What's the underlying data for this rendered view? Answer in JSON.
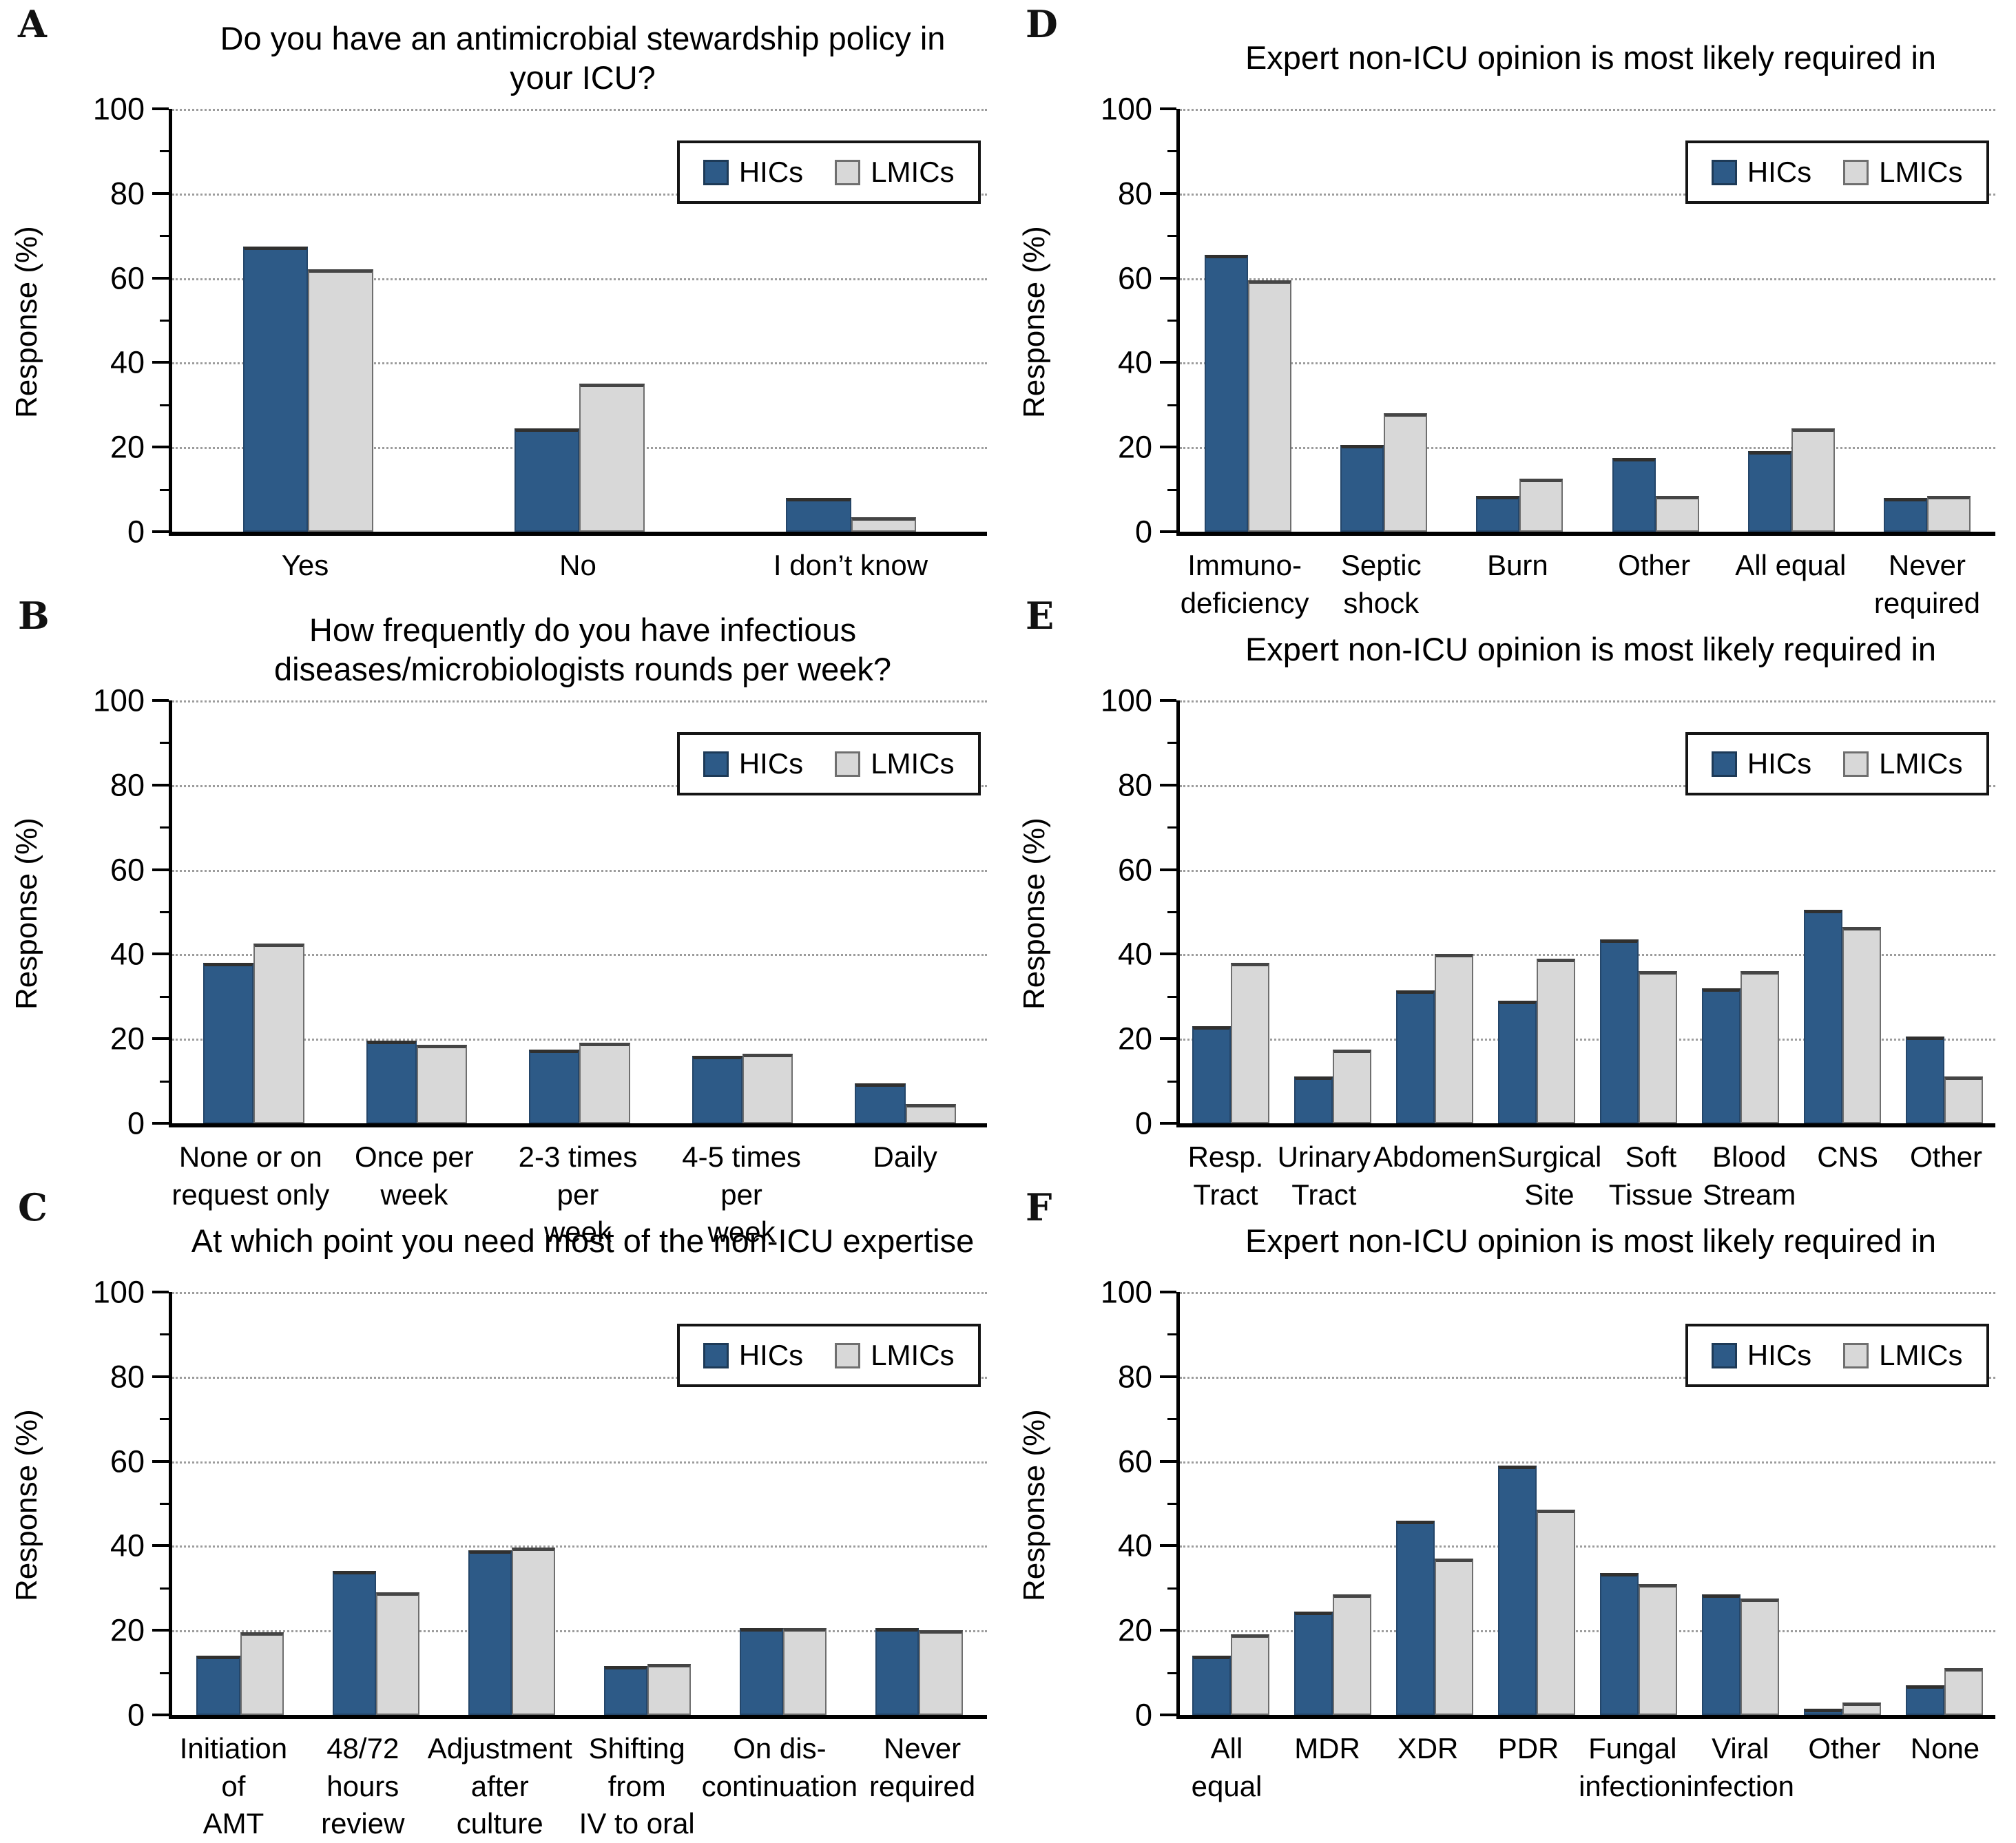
{
  "ylabel": "Response (%)",
  "yticks": [
    0,
    20,
    40,
    60,
    80,
    100
  ],
  "legend": {
    "items": [
      {
        "label": "HICs",
        "color": "#2d5a87"
      },
      {
        "label": "LMICs",
        "color": "#d8d8d8"
      }
    ]
  },
  "chart_data": [
    {
      "panel": "A",
      "type": "bar",
      "title": "Do you have an antimicrobial stewardship policy in your ICU?",
      "categories": [
        [
          "Yes"
        ],
        [
          "No"
        ],
        [
          "I don’t know"
        ]
      ],
      "series": [
        {
          "name": "HICs",
          "values": [
            67.5,
            24.5,
            8
          ]
        },
        {
          "name": "LMICs",
          "values": [
            62,
            35,
            3.5
          ]
        }
      ],
      "xlabel": "",
      "ylabel": "Response (%)",
      "ylim": [
        0,
        100
      ],
      "grid": true,
      "legend_position": "top-right"
    },
    {
      "panel": "D",
      "type": "bar",
      "title": "Expert non-ICU opinion is most likely required in",
      "categories": [
        [
          "Immuno-",
          "deficiency"
        ],
        [
          "Septic shock"
        ],
        [
          "Burn"
        ],
        [
          "Other"
        ],
        [
          "All equal"
        ],
        [
          "Never",
          "required"
        ]
      ],
      "series": [
        {
          "name": "HICs",
          "values": [
            65.5,
            20.5,
            8.5,
            17.5,
            19,
            8
          ]
        },
        {
          "name": "LMICs",
          "values": [
            59.5,
            28,
            12.5,
            8.5,
            24.5,
            8.5
          ]
        }
      ],
      "xlabel": "",
      "ylabel": "Response (%)",
      "ylim": [
        0,
        100
      ],
      "grid": true,
      "legend_position": "top-right"
    },
    {
      "panel": "B",
      "type": "bar",
      "title": "How frequently do you have infectious diseases/microbiologists rounds per week?",
      "categories": [
        [
          "None or on",
          "request only"
        ],
        [
          "Once per",
          "week"
        ],
        [
          "2-3 times per",
          "week"
        ],
        [
          "4-5 times per",
          "week"
        ],
        [
          "Daily"
        ]
      ],
      "series": [
        {
          "name": "HICs",
          "values": [
            38,
            19.5,
            17.5,
            16,
            9.5
          ]
        },
        {
          "name": "LMICs",
          "values": [
            42.5,
            18.5,
            19,
            16.5,
            4.5
          ]
        }
      ],
      "xlabel": "",
      "ylabel": "Response (%)",
      "ylim": [
        0,
        100
      ],
      "grid": true,
      "legend_position": "top-right"
    },
    {
      "panel": "E",
      "type": "bar",
      "title": "Expert non-ICU opinion is most likely required in",
      "categories": [
        [
          "Resp.",
          "Tract"
        ],
        [
          "Urinary",
          "Tract"
        ],
        [
          "Abdomen"
        ],
        [
          "Surgical",
          "Site"
        ],
        [
          "Soft",
          "Tissue"
        ],
        [
          "Blood",
          "Stream"
        ],
        [
          "CNS"
        ],
        [
          "Other"
        ]
      ],
      "series": [
        {
          "name": "HICs",
          "values": [
            23,
            11,
            31.5,
            29,
            43.5,
            32,
            50.5,
            20.5
          ]
        },
        {
          "name": "LMICs",
          "values": [
            38,
            17.5,
            40,
            39,
            36,
            36,
            46.5,
            11
          ]
        }
      ],
      "xlabel": "",
      "ylabel": "Response (%)",
      "ylim": [
        0,
        100
      ],
      "grid": true,
      "legend_position": "top-right"
    },
    {
      "panel": "C",
      "type": "bar",
      "title": "At which point you need most of the non-ICU expertise",
      "categories": [
        [
          "Initiation of",
          "AMT"
        ],
        [
          "48/72 hours",
          "review"
        ],
        [
          "Adjustment",
          "after culture"
        ],
        [
          "Shifting from",
          "IV to oral"
        ],
        [
          "On dis-",
          "continuation"
        ],
        [
          "Never",
          "required"
        ]
      ],
      "series": [
        {
          "name": "HICs",
          "values": [
            14,
            34,
            39,
            11.5,
            20.5,
            20.5
          ]
        },
        {
          "name": "LMICs",
          "values": [
            19.5,
            29,
            39.5,
            12,
            20.5,
            20
          ]
        }
      ],
      "xlabel": "",
      "ylabel": "Response (%)",
      "ylim": [
        0,
        100
      ],
      "grid": true,
      "legend_position": "top-right"
    },
    {
      "panel": "F",
      "type": "bar",
      "title": "Expert non-ICU opinion is most likely required in",
      "categories": [
        [
          "All equal"
        ],
        [
          "MDR"
        ],
        [
          "XDR"
        ],
        [
          "PDR"
        ],
        [
          "Fungal",
          "infection"
        ],
        [
          "Viral",
          "infection"
        ],
        [
          "Other"
        ],
        [
          "None"
        ]
      ],
      "series": [
        {
          "name": "HICs",
          "values": [
            14,
            24.5,
            46,
            59,
            33.5,
            28.5,
            1.5,
            7
          ]
        },
        {
          "name": "LMICs",
          "values": [
            19,
            28.5,
            37,
            48.5,
            31,
            27.5,
            3,
            11
          ]
        }
      ],
      "xlabel": "",
      "ylabel": "Response (%)",
      "ylim": [
        0,
        100
      ],
      "grid": true,
      "legend_position": "top-right"
    }
  ]
}
